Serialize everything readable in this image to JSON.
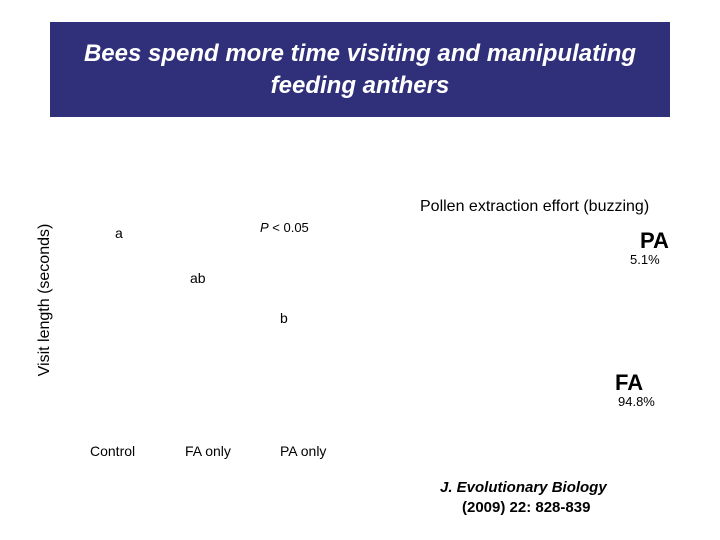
{
  "title": "Bees spend more time visiting and manipulating feeding anthers",
  "left_chart": {
    "type": "bar",
    "y_axis_label": "Visit length (seconds)",
    "categories": [
      "Control",
      "FA only",
      "PA only"
    ],
    "significance_letters": [
      "a",
      "ab",
      "b"
    ],
    "p_value_prefix": "P",
    "p_value_text": " < 0.05",
    "p_value_full": "P < 0.05",
    "background_color": "#ffffff",
    "label_fontsize": 14
  },
  "right_chart": {
    "type": "pie",
    "title": "Pollen extraction effort (buzzing)",
    "slices": [
      {
        "label": "PA",
        "percent_text": "5.1%",
        "value": 5.1
      },
      {
        "label": "FA",
        "percent_text": "94.8%",
        "value": 94.8
      }
    ],
    "label_fontsize": 22,
    "pct_fontsize": 13,
    "background_color": "#ffffff"
  },
  "citation": {
    "journal": "J. Evolutionary Biology",
    "details": "(2009) 22: 828-839"
  },
  "colors": {
    "title_bg": "#2f2f7a",
    "title_text": "#ffffff",
    "page_bg": "#ffffff",
    "text": "#000000"
  }
}
